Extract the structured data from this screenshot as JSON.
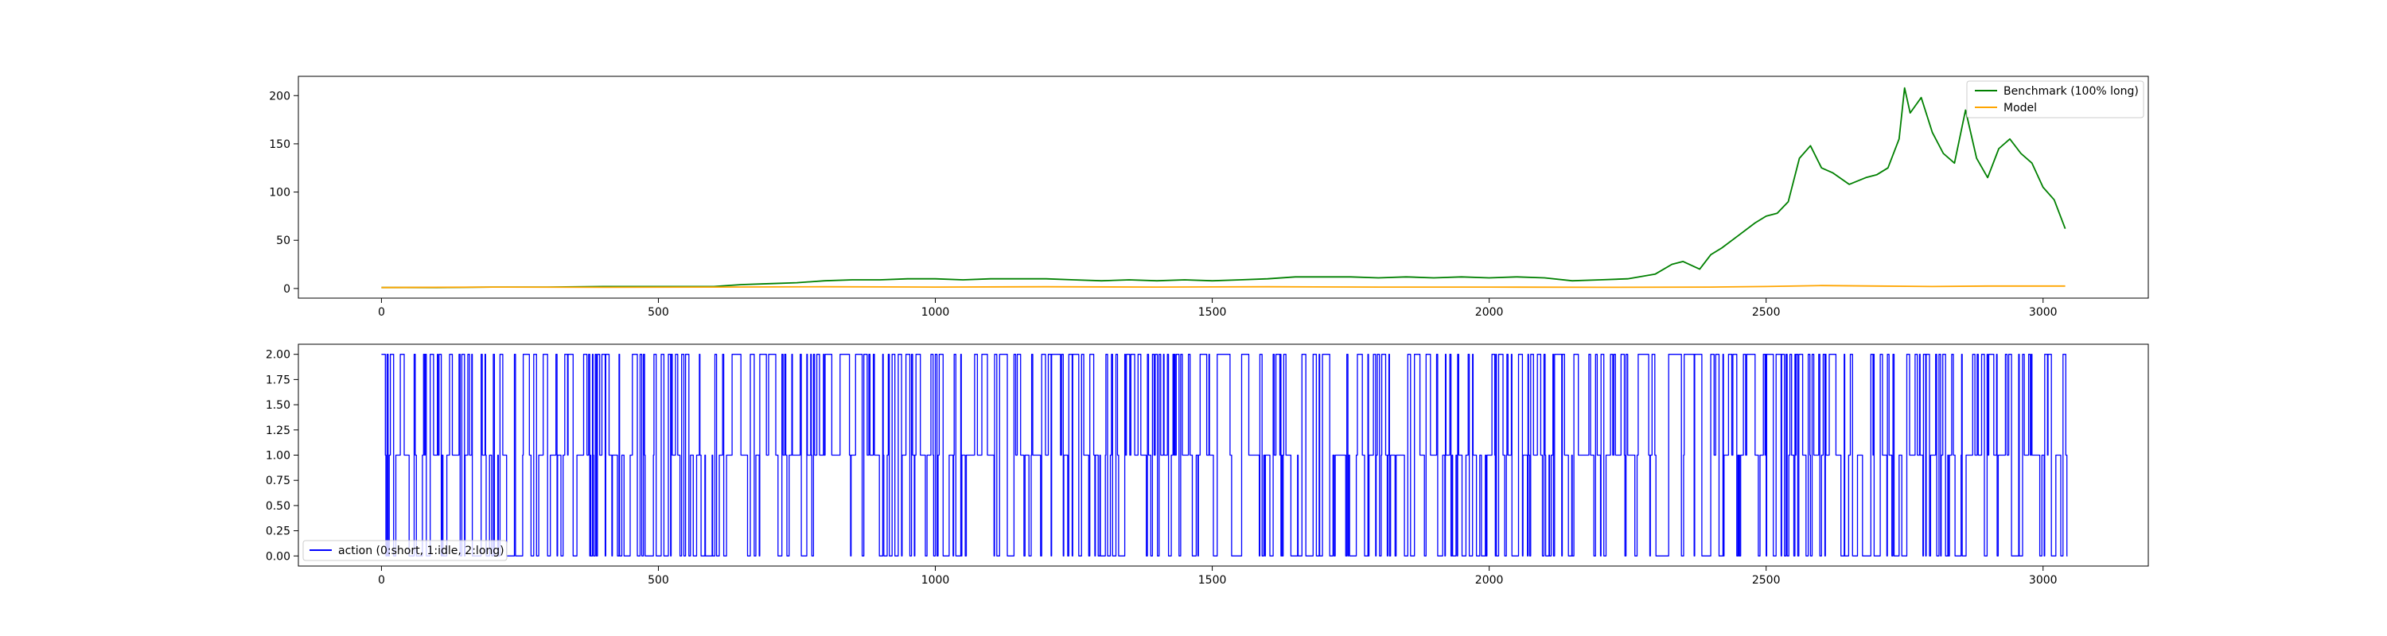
{
  "chart_data": [
    {
      "type": "line",
      "title": "",
      "xlabel": "",
      "ylabel": "",
      "xlim": [
        -150,
        3190
      ],
      "ylim": [
        -10,
        220
      ],
      "xticks": [
        0,
        500,
        1000,
        1500,
        2000,
        2500,
        3000
      ],
      "yticks": [
        0,
        50,
        100,
        150,
        200
      ],
      "grid": false,
      "legend_position": "top-right",
      "series": [
        {
          "name": "Benchmark (100% long)",
          "color": "#008000",
          "x": [
            0,
            100,
            200,
            300,
            400,
            500,
            600,
            650,
            700,
            750,
            800,
            850,
            900,
            950,
            1000,
            1050,
            1100,
            1150,
            1200,
            1250,
            1300,
            1350,
            1400,
            1450,
            1500,
            1550,
            1600,
            1650,
            1700,
            1750,
            1800,
            1850,
            1900,
            1950,
            2000,
            2050,
            2100,
            2150,
            2200,
            2250,
            2300,
            2330,
            2350,
            2380,
            2400,
            2420,
            2450,
            2480,
            2500,
            2520,
            2540,
            2560,
            2580,
            2600,
            2620,
            2650,
            2680,
            2700,
            2720,
            2740,
            2750,
            2760,
            2780,
            2800,
            2820,
            2840,
            2860,
            2880,
            2900,
            2920,
            2940,
            2960,
            2980,
            3000,
            3020,
            3040
          ],
          "y": [
            1,
            1,
            1.5,
            1.5,
            2,
            2,
            2,
            4,
            5,
            6,
            8,
            9,
            9,
            10,
            10,
            9,
            10,
            10,
            10,
            9,
            8,
            9,
            8,
            9,
            8,
            9,
            10,
            12,
            12,
            12,
            11,
            12,
            11,
            12,
            11,
            12,
            11,
            8,
            9,
            10,
            15,
            25,
            28,
            20,
            35,
            42,
            55,
            68,
            75,
            78,
            90,
            135,
            148,
            125,
            120,
            108,
            115,
            118,
            125,
            155,
            208,
            182,
            198,
            162,
            140,
            130,
            185,
            135,
            115,
            145,
            155,
            140,
            130,
            105,
            92,
            62
          ]
        },
        {
          "name": "Model",
          "color": "#ffa500",
          "x": [
            0,
            200,
            400,
            600,
            800,
            1000,
            1200,
            1400,
            1600,
            1800,
            2000,
            2200,
            2400,
            2500,
            2600,
            2700,
            2800,
            2900,
            3000,
            3040
          ],
          "y": [
            1,
            1.5,
            1.2,
            1.5,
            1.8,
            1.5,
            1.8,
            1.5,
            1.8,
            1.5,
            1.5,
            1.2,
            1.5,
            2,
            3,
            2.5,
            2,
            2.5,
            2.5,
            2.5
          ]
        }
      ]
    },
    {
      "type": "line",
      "title": "",
      "xlabel": "",
      "ylabel": "",
      "xlim": [
        -150,
        3190
      ],
      "ylim": [
        -0.1,
        2.1
      ],
      "xticks": [
        0,
        500,
        1000,
        1500,
        2000,
        2500,
        3000
      ],
      "yticks": [
        0.0,
        0.25,
        0.5,
        0.75,
        1.0,
        1.25,
        1.5,
        1.75,
        2.0
      ],
      "ytick_labels": [
        "0.00",
        "0.25",
        "0.50",
        "0.75",
        "1.00",
        "1.25",
        "1.50",
        "1.75",
        "2.00"
      ],
      "grid": false,
      "legend_position": "bottom-left",
      "series": [
        {
          "name": "action (0:short, 1:idle, 2:long)",
          "color": "#0000ff",
          "drawstyle": "steps",
          "levels": [
            0,
            1,
            2
          ],
          "length": 3045
        }
      ]
    }
  ]
}
